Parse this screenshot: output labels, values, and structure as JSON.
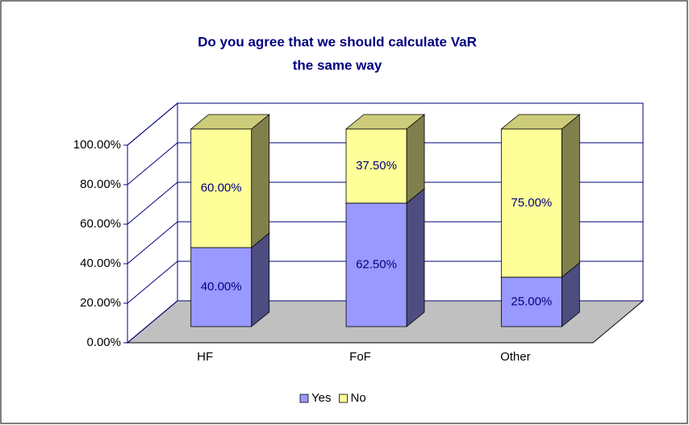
{
  "chart_data": {
    "type": "bar3d_stacked",
    "title": [
      "Do you agree that we should calculate VaR",
      "the same way"
    ],
    "categories": [
      "HF",
      "FoF",
      "Other"
    ],
    "series": [
      {
        "name": "Yes",
        "color": "#9999ff",
        "values": [
          40,
          62.5,
          25
        ],
        "value_labels": [
          "40.00%",
          "62.50%",
          "25.00%"
        ]
      },
      {
        "name": "No",
        "color": "#ffff99",
        "values": [
          60,
          37.5,
          75
        ],
        "value_labels": [
          "60.00%",
          "37.50%",
          "75.00%"
        ]
      }
    ],
    "ylim": [
      0,
      100
    ],
    "yticks": [
      {
        "value": 0,
        "label": "0.00%"
      },
      {
        "value": 20,
        "label": "20.00%"
      },
      {
        "value": 40,
        "label": "40.00%"
      },
      {
        "value": 60,
        "label": "60.00%"
      },
      {
        "value": 80,
        "label": "80.00%"
      },
      {
        "value": 100,
        "label": "100.00%"
      }
    ],
    "grid": true,
    "legend": "bottom"
  }
}
